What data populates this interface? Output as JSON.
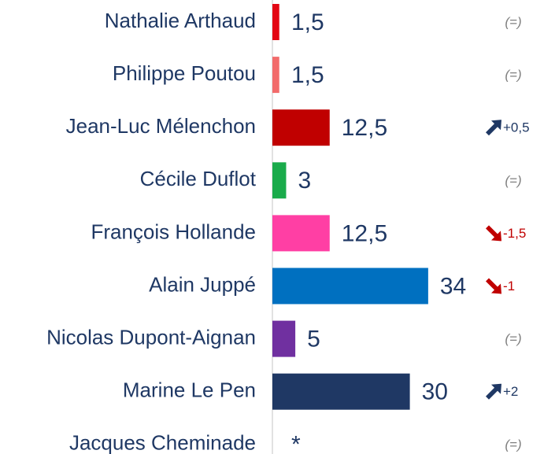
{
  "chart_data": {
    "type": "bar",
    "categories": [
      "Nathalie Arthaud",
      "Philippe Poutou",
      "Jean-Luc Mélenchon",
      "Cécile Duflot",
      "François Hollande",
      "Alain Juppé",
      "Nicolas Dupont-Aignan",
      "Marine Le Pen",
      "Jacques Cheminade"
    ],
    "values": [
      1.5,
      1.5,
      12.5,
      3,
      12.5,
      34,
      5,
      30,
      null
    ],
    "value_labels": [
      "1,5",
      "1,5",
      "12,5",
      "3",
      "12,5",
      "34",
      "5",
      "30",
      "*"
    ],
    "colors": [
      "#e30613",
      "#f26b6b",
      "#c00000",
      "#1aab4b",
      "#ff3fa4",
      "#0070c0",
      "#7030a0",
      "#1f3864",
      null
    ],
    "changes": [
      "(=)",
      "(=)",
      "+0,5",
      "(=)",
      "-1,5",
      "-1",
      "(=)",
      "+2",
      "(=)"
    ],
    "change_colors": {
      "up": "#1f3864",
      "down": "#c00000",
      "same": "#7f7f7f"
    }
  }
}
